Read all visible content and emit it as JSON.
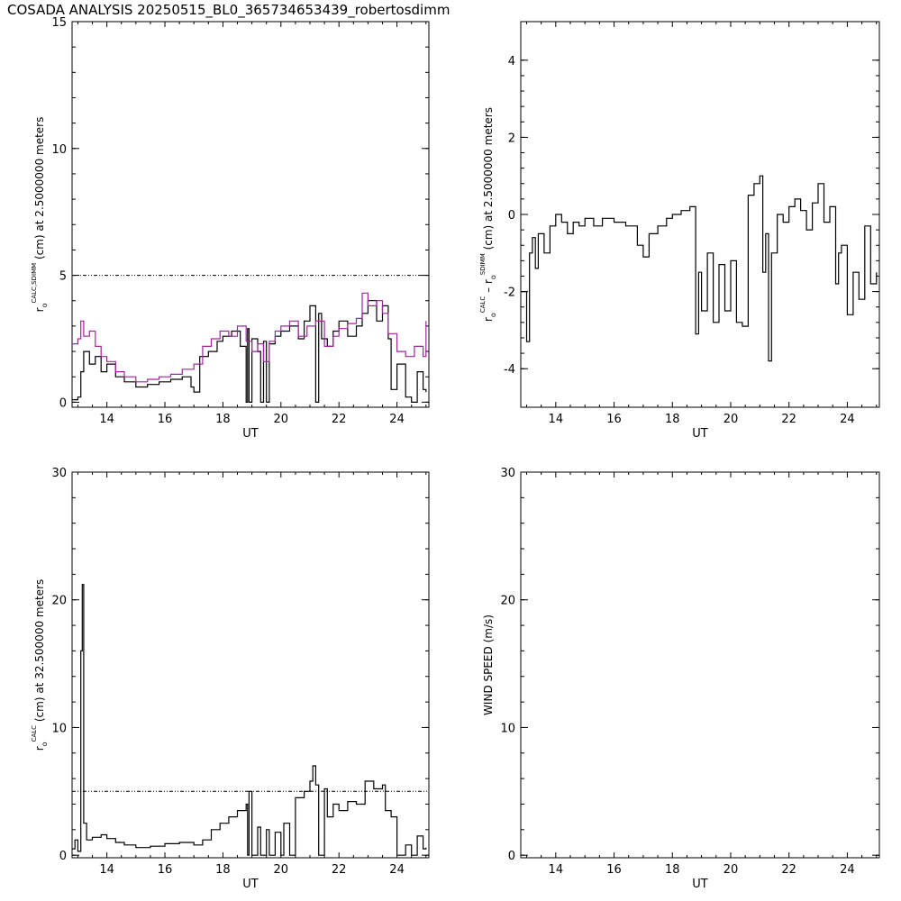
{
  "title": "COSADA ANALYSIS 20250515_BL0_365734653439_robertosdimm",
  "colors": {
    "ink": "#000000",
    "calc": "#000000",
    "sdimm": "#a0259f",
    "ref": "#000000"
  },
  "chart_data": [
    {
      "type": "line",
      "xlabel": "UT",
      "ylabel": {
        "main": "r",
        "sub": "o",
        "sup": "CALC,SDIMM",
        "rest": "(cm)  at  2.5000000 meters"
      },
      "xlim": [
        12.8,
        25.1
      ],
      "ylim": [
        -0.2,
        15
      ],
      "xticks": [
        "14",
        "16",
        "18",
        "20",
        "22",
        "24"
      ],
      "xtick_values": [
        14,
        16,
        18,
        20,
        22,
        24
      ],
      "yticks": [
        "0",
        "5",
        "10",
        "15"
      ],
      "ytick_values": [
        0,
        5,
        10,
        15
      ],
      "reference_line": 5,
      "series": [
        {
          "color_key": "calc",
          "x": [
            12.8,
            13.0,
            13.1,
            13.2,
            13.4,
            13.6,
            13.8,
            14.0,
            14.3,
            14.6,
            15.0,
            15.4,
            15.8,
            16.2,
            16.6,
            16.9,
            17.0,
            17.2,
            17.5,
            17.8,
            18.0,
            18.3,
            18.6,
            18.8,
            18.85,
            18.9,
            19.0,
            19.2,
            19.3,
            19.4,
            19.5,
            19.6,
            19.8,
            20.0,
            20.3,
            20.6,
            20.8,
            21.0,
            21.2,
            21.3,
            21.4,
            21.6,
            21.8,
            22.0,
            22.3,
            22.6,
            22.8,
            23.0,
            23.3,
            23.5,
            23.7,
            23.8,
            24.0,
            24.3,
            24.5,
            24.7,
            24.9,
            25.0
          ],
          "y": [
            0.1,
            0.2,
            1.2,
            2.0,
            1.5,
            1.8,
            1.2,
            1.5,
            1.0,
            0.8,
            0.6,
            0.7,
            0.8,
            0.9,
            1.0,
            0.6,
            0.4,
            1.8,
            2.0,
            2.4,
            2.6,
            2.8,
            2.2,
            0.0,
            2.9,
            0.0,
            2.5,
            2.0,
            0.0,
            2.4,
            0.0,
            2.3,
            2.6,
            2.8,
            3.0,
            2.5,
            3.2,
            3.8,
            0.0,
            3.5,
            2.5,
            2.2,
            2.8,
            3.2,
            2.6,
            3.0,
            3.5,
            4.0,
            3.2,
            3.8,
            2.5,
            0.5,
            1.5,
            0.2,
            0.0,
            1.2,
            0.5,
            0.4
          ]
        },
        {
          "color_key": "sdimm",
          "x": [
            12.8,
            13.0,
            13.1,
            13.2,
            13.4,
            13.6,
            13.8,
            14.0,
            14.3,
            14.6,
            15.0,
            15.4,
            15.8,
            16.2,
            16.6,
            17.0,
            17.3,
            17.6,
            17.9,
            18.2,
            18.5,
            18.8,
            19.0,
            19.2,
            19.4,
            19.6,
            19.8,
            20.0,
            20.3,
            20.6,
            20.9,
            21.2,
            21.5,
            21.8,
            22.0,
            22.3,
            22.6,
            22.8,
            23.0,
            23.3,
            23.5,
            23.7,
            24.0,
            24.3,
            24.6,
            24.9,
            25.0
          ],
          "y": [
            2.3,
            2.5,
            3.2,
            2.6,
            2.8,
            2.2,
            1.8,
            1.6,
            1.2,
            1.0,
            0.8,
            0.9,
            1.0,
            1.1,
            1.3,
            1.5,
            2.2,
            2.5,
            2.8,
            2.6,
            3.0,
            2.4,
            2.0,
            2.3,
            1.6,
            2.4,
            2.8,
            3.0,
            3.2,
            2.6,
            3.0,
            3.2,
            2.2,
            2.6,
            2.9,
            3.1,
            3.3,
            4.3,
            3.8,
            4.0,
            3.5,
            2.7,
            2.0,
            1.8,
            2.2,
            1.8,
            3.2
          ]
        }
      ]
    },
    {
      "type": "line",
      "xlabel": "UT",
      "ylabel": {
        "main": "r",
        "sub": "o",
        "sup": "CALC",
        "mid": " – r",
        "sub2": "o",
        "sup2": "SDIMM",
        "rest": "(cm)  at  2.5000000 meters"
      },
      "xlim": [
        12.8,
        25.1
      ],
      "ylim": [
        -5,
        5
      ],
      "xticks": [
        "14",
        "16",
        "18",
        "20",
        "22",
        "24"
      ],
      "xtick_values": [
        14,
        16,
        18,
        20,
        22,
        24
      ],
      "yticks": [
        "-4",
        "-2",
        "0",
        "2",
        "4"
      ],
      "ytick_values": [
        -4,
        -2,
        0,
        2,
        4
      ],
      "series": [
        {
          "color_key": "calc",
          "x": [
            12.8,
            13.0,
            13.1,
            13.2,
            13.3,
            13.4,
            13.6,
            13.8,
            14.0,
            14.2,
            14.4,
            14.6,
            14.8,
            15.0,
            15.3,
            15.6,
            16.0,
            16.4,
            16.8,
            17.0,
            17.2,
            17.5,
            17.8,
            18.0,
            18.3,
            18.6,
            18.8,
            18.9,
            19.0,
            19.2,
            19.4,
            19.6,
            19.8,
            20.0,
            20.2,
            20.4,
            20.6,
            20.8,
            21.0,
            21.1,
            21.2,
            21.3,
            21.4,
            21.6,
            21.8,
            22.0,
            22.2,
            22.4,
            22.6,
            22.8,
            23.0,
            23.2,
            23.4,
            23.6,
            23.7,
            23.8,
            24.0,
            24.2,
            24.4,
            24.6,
            24.8,
            25.0
          ],
          "y": [
            -2.0,
            -3.3,
            -1.0,
            -0.6,
            -1.4,
            -0.5,
            -1.0,
            -0.3,
            0.0,
            -0.2,
            -0.5,
            -0.2,
            -0.3,
            -0.1,
            -0.3,
            -0.1,
            -0.2,
            -0.3,
            -0.8,
            -1.1,
            -0.5,
            -0.3,
            -0.1,
            0.0,
            0.1,
            0.2,
            -3.1,
            -1.5,
            -2.5,
            -1.0,
            -2.8,
            -1.3,
            -2.5,
            -1.2,
            -2.8,
            -2.9,
            0.5,
            0.8,
            1.0,
            -1.5,
            -0.5,
            -3.8,
            -1.0,
            0.0,
            -0.2,
            0.2,
            0.4,
            0.1,
            -0.4,
            0.3,
            0.8,
            -0.2,
            0.2,
            -1.8,
            -1.0,
            -0.8,
            -2.6,
            -1.5,
            -2.2,
            -0.3,
            -1.8,
            -1.5
          ]
        }
      ]
    },
    {
      "type": "line",
      "xlabel": "UT",
      "ylabel": {
        "main": "r",
        "sub": "o",
        "sup": "CALC",
        "rest": "(cm)  at  32.500000 meters"
      },
      "xlim": [
        12.8,
        25.1
      ],
      "ylim": [
        -0.2,
        30
      ],
      "xticks": [
        "14",
        "16",
        "18",
        "20",
        "22",
        "24"
      ],
      "xtick_values": [
        14,
        16,
        18,
        20,
        22,
        24
      ],
      "yticks": [
        "0",
        "10",
        "20",
        "30"
      ],
      "ytick_values": [
        0,
        10,
        20,
        30
      ],
      "reference_line": 5,
      "series": [
        {
          "color_key": "calc",
          "x": [
            12.8,
            12.9,
            13.0,
            13.1,
            13.15,
            13.2,
            13.3,
            13.5,
            13.8,
            14.0,
            14.3,
            14.6,
            15.0,
            15.5,
            16.0,
            16.5,
            17.0,
            17.3,
            17.6,
            17.9,
            18.2,
            18.5,
            18.8,
            18.85,
            18.9,
            19.0,
            19.2,
            19.3,
            19.5,
            19.6,
            19.8,
            20.0,
            20.1,
            20.3,
            20.5,
            20.8,
            21.0,
            21.1,
            21.2,
            21.3,
            21.5,
            21.6,
            21.8,
            22.0,
            22.3,
            22.6,
            22.9,
            23.2,
            23.5,
            23.6,
            23.8,
            24.0,
            24.3,
            24.5,
            24.7,
            24.9,
            25.0
          ],
          "y": [
            0.5,
            1.2,
            0.3,
            16.0,
            21.2,
            2.5,
            1.2,
            1.4,
            1.6,
            1.3,
            1.0,
            0.8,
            0.6,
            0.7,
            0.9,
            1.0,
            0.8,
            1.2,
            2.0,
            2.5,
            3.0,
            3.5,
            4.0,
            0.0,
            5.0,
            0.0,
            2.2,
            0.0,
            2.0,
            0.0,
            1.8,
            0.0,
            2.5,
            0.0,
            4.5,
            5.0,
            5.8,
            7.0,
            5.5,
            0.0,
            5.2,
            3.0,
            4.0,
            3.5,
            4.2,
            4.0,
            5.8,
            5.2,
            5.5,
            3.5,
            3.0,
            0.0,
            0.8,
            0.0,
            1.5,
            0.5,
            0.6
          ]
        }
      ]
    },
    {
      "type": "line",
      "xlabel": "UT",
      "ylabel": {
        "main": "WIND SPEED  (m/s)"
      },
      "xlim": [
        12.8,
        25.1
      ],
      "ylim": [
        -0.2,
        30
      ],
      "xticks": [
        "14",
        "16",
        "18",
        "20",
        "22",
        "24"
      ],
      "xtick_values": [
        14,
        16,
        18,
        20,
        22,
        24
      ],
      "yticks": [
        "0",
        "10",
        "20",
        "30"
      ],
      "ytick_values": [
        0,
        10,
        20,
        30
      ],
      "series": []
    }
  ]
}
